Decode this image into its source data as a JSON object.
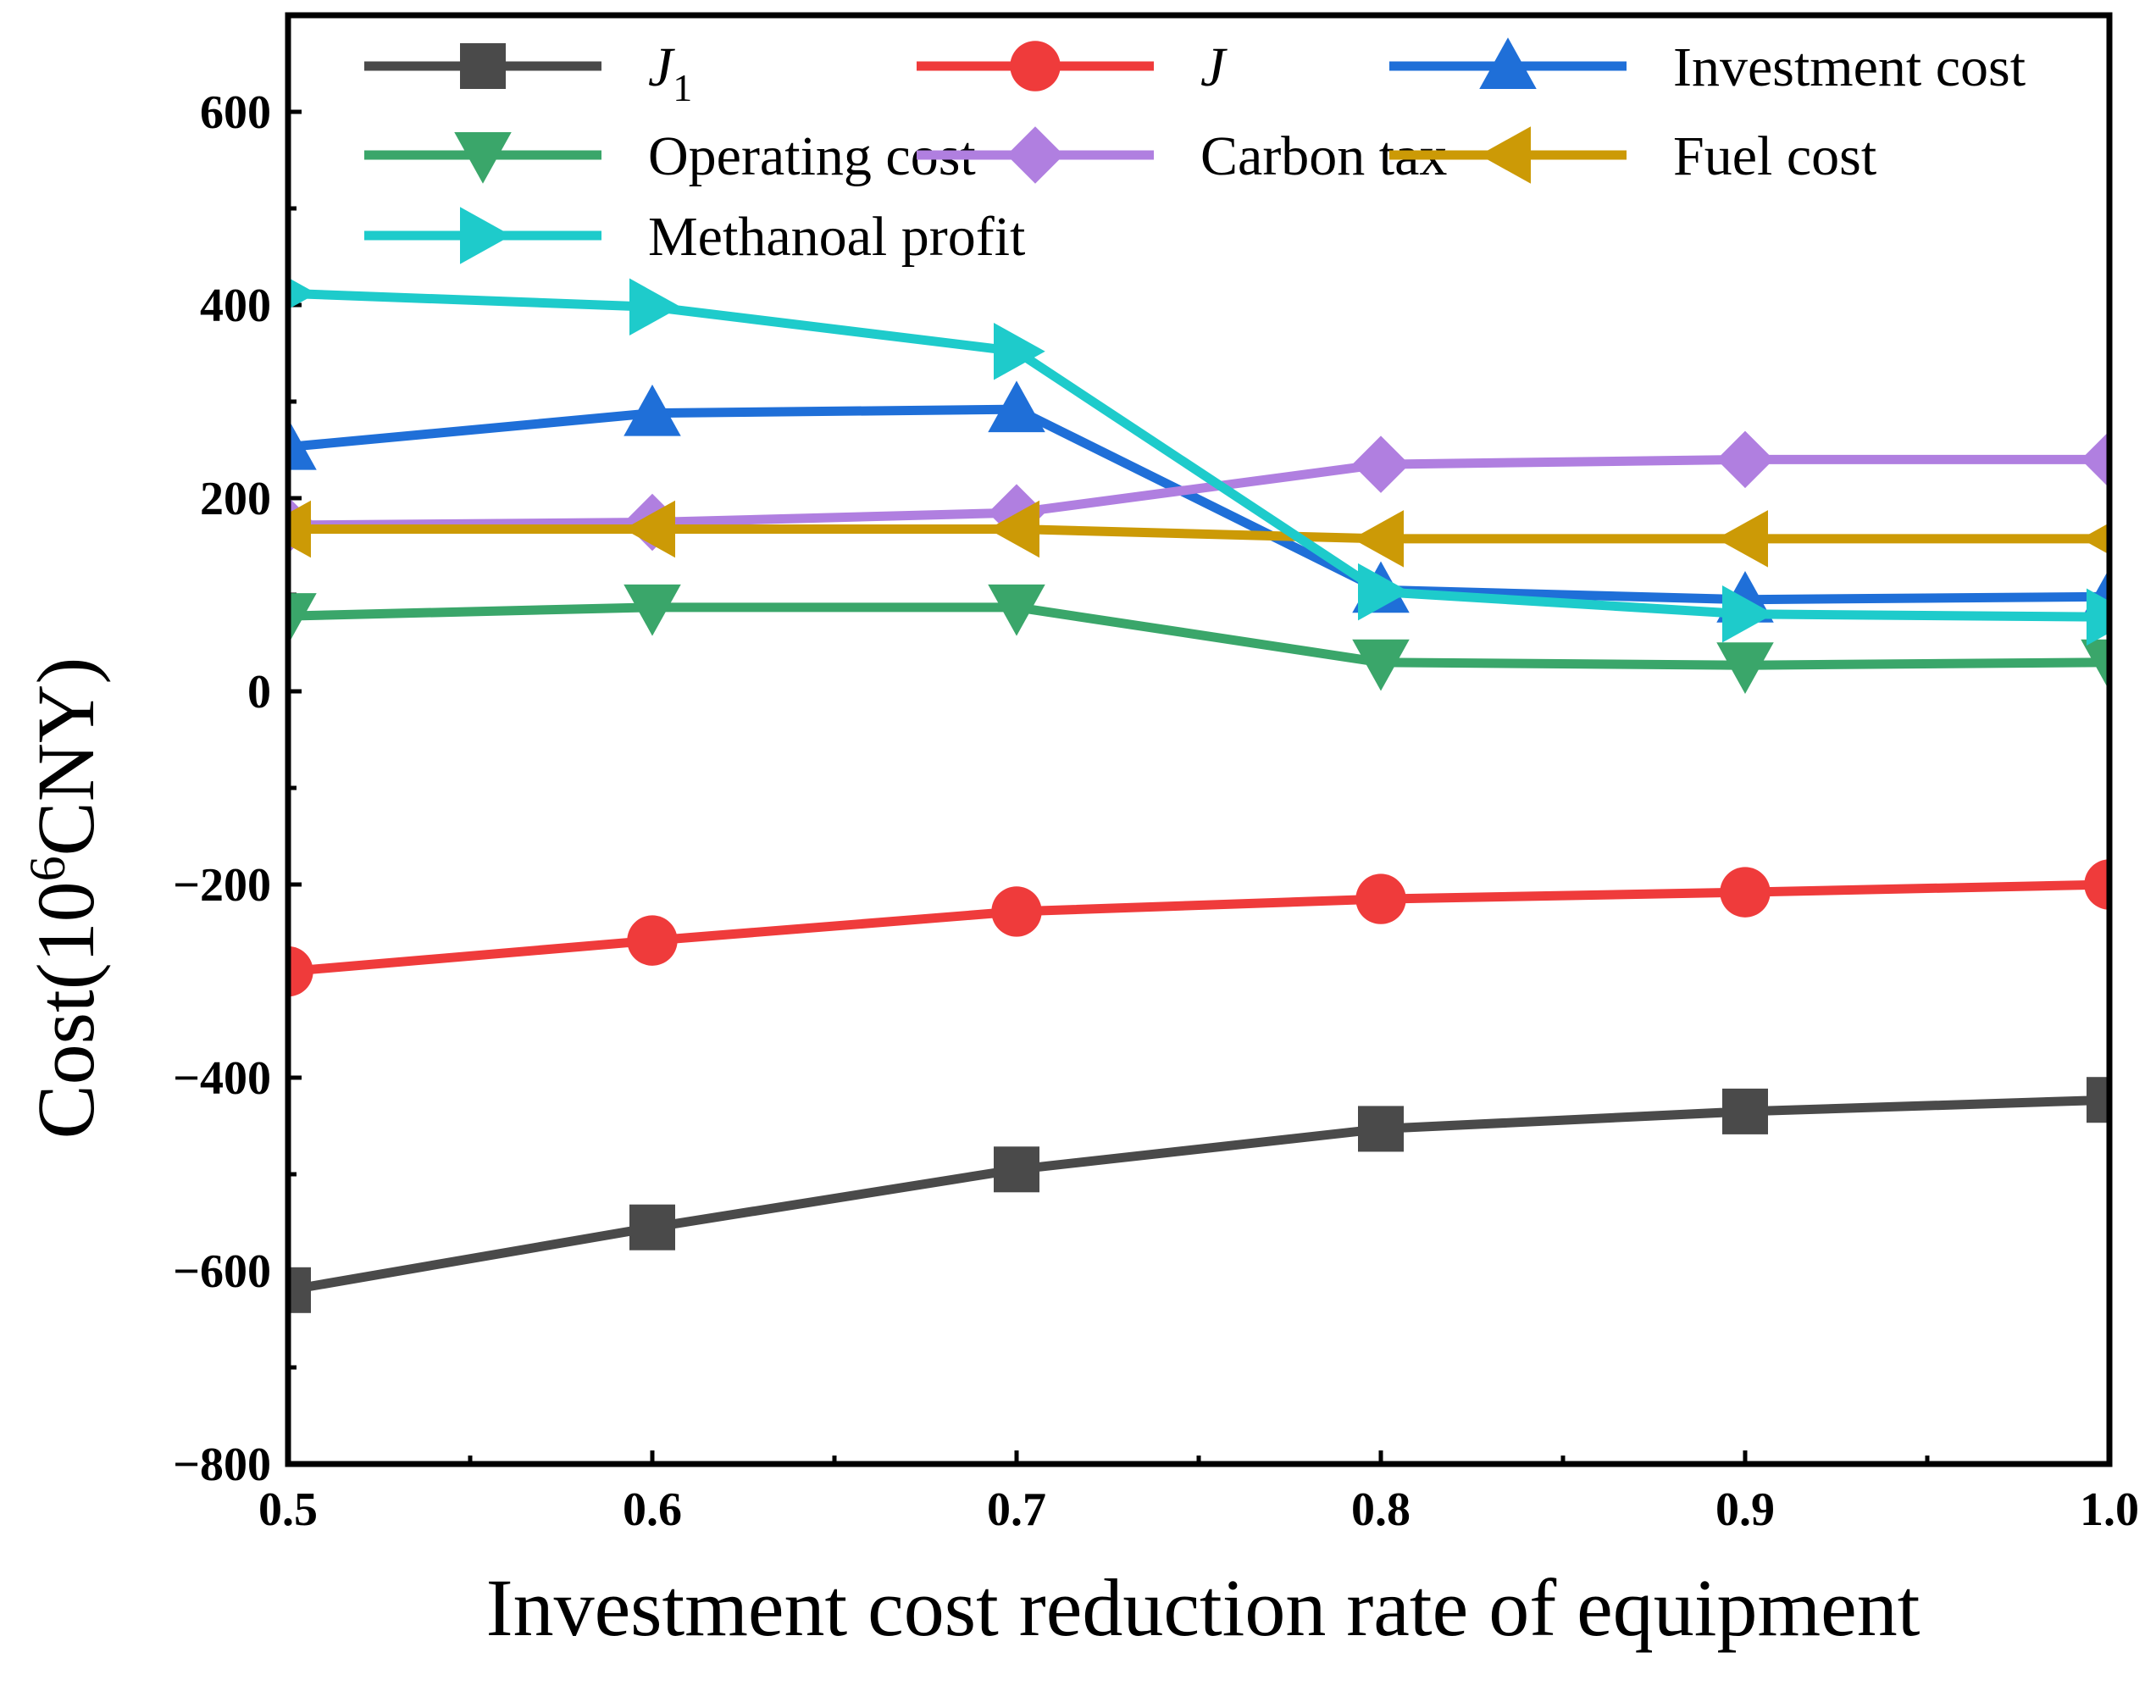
{
  "chart_data": {
    "type": "line",
    "xlabel": "Investment cost reduction rate of equipment",
    "ylabel_main": "Cost(10",
    "ylabel_sup": "6",
    "ylabel_tail": "CNY)",
    "x": [
      0.5,
      0.6,
      0.7,
      0.8,
      0.9,
      1.0
    ],
    "xlim": [
      0.5,
      1.0
    ],
    "ylim": [
      -800,
      700
    ],
    "xticks": [
      "0.5",
      "0.6",
      "0.7",
      "0.8",
      "0.9",
      "1.0"
    ],
    "yticks": [
      "600",
      "400",
      "200",
      "0",
      "−200",
      "−400",
      "−600",
      "−800"
    ],
    "ytick_values": [
      600,
      400,
      200,
      0,
      -200,
      -400,
      -600,
      -800
    ],
    "grid": false,
    "legend_position": "top",
    "series": [
      {
        "name": "J",
        "subscript": "1",
        "italic": true,
        "color": "#4a4a4a",
        "marker": "square",
        "values": [
          -620,
          -555,
          -495,
          -453,
          -435,
          -423
        ]
      },
      {
        "name": "J",
        "subscript": "",
        "italic": true,
        "color": "#ef3b3b",
        "marker": "circle",
        "values": [
          -290,
          -258,
          -228,
          -215,
          -208,
          -200
        ]
      },
      {
        "name": "Investment cost",
        "subscript": "",
        "italic": false,
        "color": "#1f6fd8",
        "marker": "triangle-up",
        "values": [
          253,
          288,
          292,
          105,
          95,
          98
        ]
      },
      {
        "name": "Operating cost",
        "subscript": "",
        "italic": false,
        "color": "#3aa66a",
        "marker": "triangle-down",
        "values": [
          78,
          87,
          87,
          30,
          27,
          30
        ]
      },
      {
        "name": "Carbon tax",
        "subscript": "",
        "italic": false,
        "color": "#b07fe0",
        "marker": "diamond",
        "values": [
          172,
          175,
          185,
          235,
          240,
          240
        ]
      },
      {
        "name": "Fuel cost",
        "subscript": "",
        "italic": false,
        "color": "#cc9a06",
        "marker": "triangle-left",
        "values": [
          168,
          168,
          168,
          158,
          158,
          158
        ]
      },
      {
        "name": "Methanoal profit",
        "subscript": "",
        "italic": false,
        "color": "#1ecbcb",
        "marker": "triangle-right",
        "values": [
          412,
          398,
          352,
          103,
          80,
          77
        ]
      }
    ]
  }
}
